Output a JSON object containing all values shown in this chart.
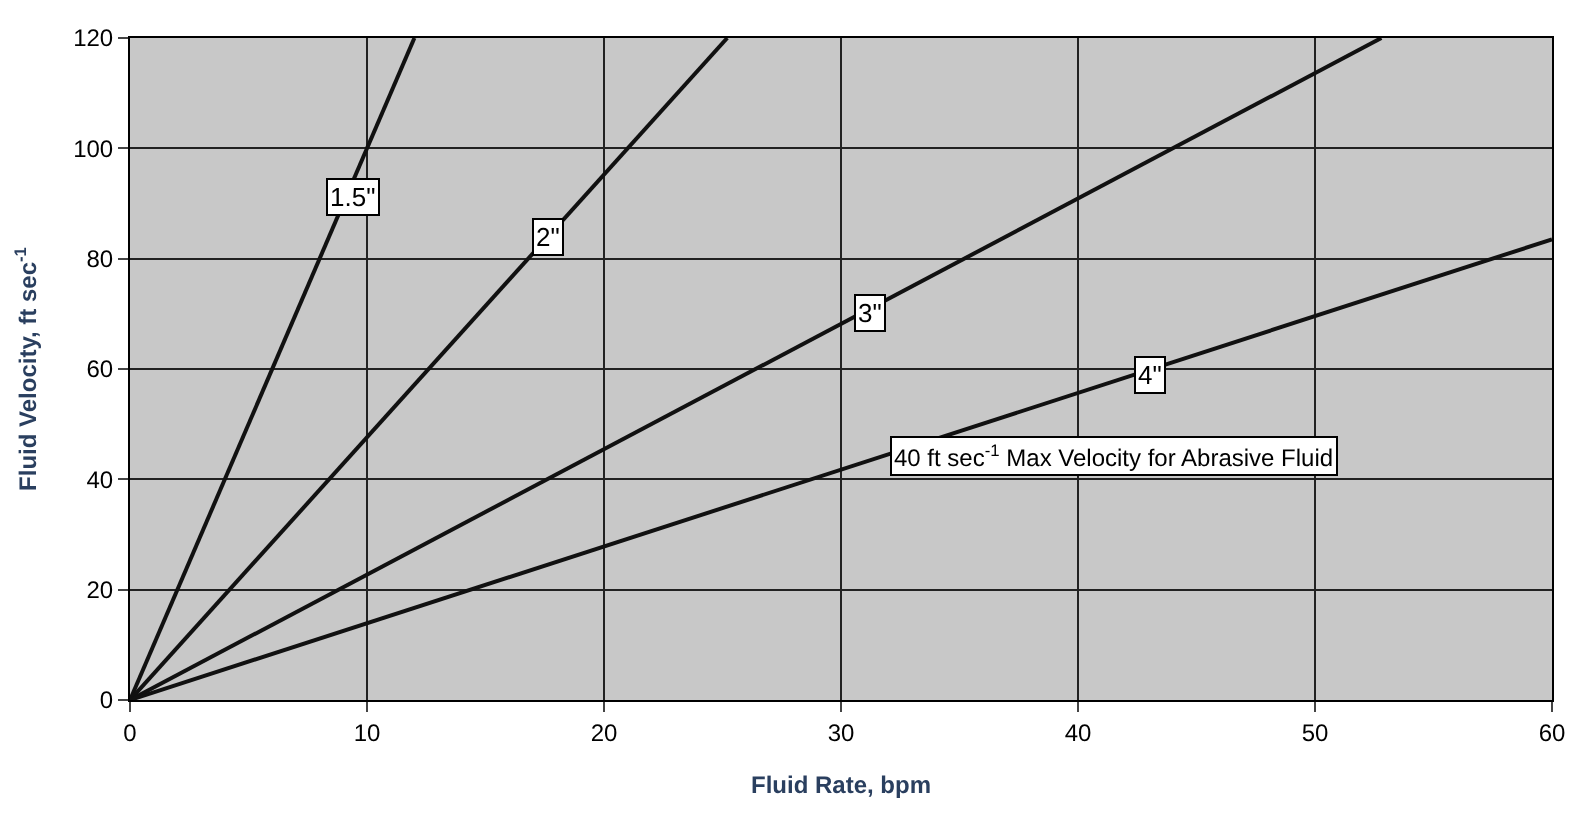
{
  "chart_data": {
    "type": "line",
    "xlabel": "Fluid Rate, bpm",
    "ylabel": "Fluid Velocity, ft sec$^{-1}$",
    "xlim": [
      0,
      60
    ],
    "xticks": [
      0,
      10,
      20,
      30,
      40,
      50,
      60
    ],
    "ylim": [
      0,
      120
    ],
    "yticks": [
      0,
      20,
      40,
      60,
      80,
      100,
      120
    ],
    "grid": true,
    "legend": false,
    "marker": "none",
    "line_style": "solid",
    "series": [
      {
        "color": "#111111",
        "x": [
          0,
          12
        ],
        "values": [
          0,
          120
        ]
      },
      {
        "color": "#111111",
        "x": [
          0,
          25.2
        ],
        "values": [
          0,
          120
        ]
      },
      {
        "color": "#111111",
        "x": [
          0,
          52.8
        ],
        "values": [
          0,
          120
        ]
      },
      {
        "color": "#111111",
        "x": [
          0,
          60
        ],
        "values": [
          0,
          83.5
        ]
      }
    ],
    "annotations": [
      {
        "text": "1.5\"",
        "x": 9.4,
        "y": 91
      },
      {
        "text": "2\"",
        "x": 17.6,
        "y": 84
      },
      {
        "text": "3\"",
        "x": 31.2,
        "y": 70
      },
      {
        "text": "4\"",
        "x": 43,
        "y": 59
      },
      "40 ft sec$^{-1}$ Max Velocity for Abrasive Fluid"
    ]
  }
}
